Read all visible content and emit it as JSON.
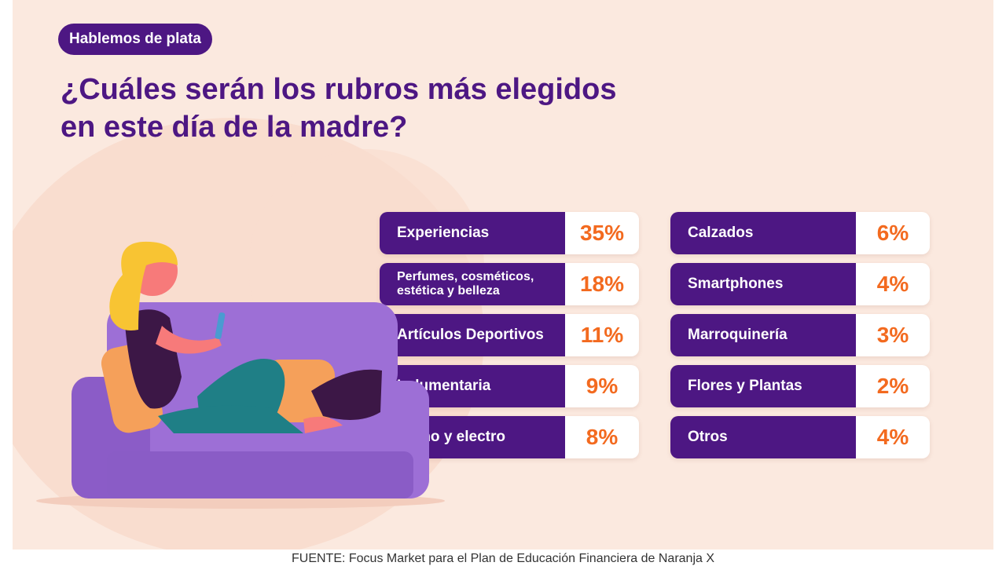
{
  "header": {
    "badge": "Hablemos de plata",
    "title_line1": "¿Cuáles serán los rubros más elegidos",
    "title_line2": "en este día de la madre?"
  },
  "chart_data": {
    "type": "table",
    "unit": "%",
    "categories": [
      "Experiencias",
      "Perfumes, cosméticos, estética y belleza",
      "Artículos Deportivos",
      "Indumentaria",
      "Tecno y electro",
      "Calzados",
      "Smartphones",
      "Marroquinería",
      "Flores y Plantas",
      "Otros"
    ],
    "values": [
      35,
      18,
      11,
      9,
      8,
      6,
      4,
      3,
      2,
      4
    ],
    "labels": [
      "35%",
      "18%",
      "11%",
      "9%",
      "8%",
      "6%",
      "4%",
      "3%",
      "2%",
      "4%"
    ]
  },
  "footer": {
    "source": "FUENTE: Focus Market para el Plan de Educación Financiera de Naranja X"
  },
  "colors": {
    "purple": "#4d1783",
    "orange": "#f36a1f",
    "background": "#fbe9df"
  }
}
